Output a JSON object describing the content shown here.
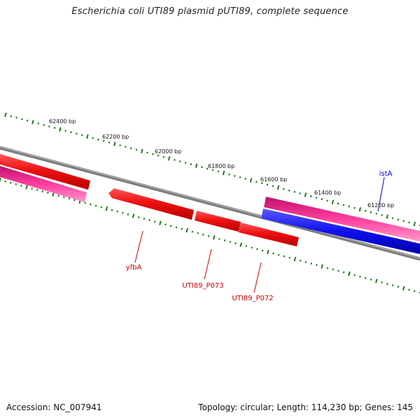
{
  "title": "Escherichia coli UTI89 plasmid pUTI89, complete sequence",
  "footer": {
    "accession": "Accession: NC_007941",
    "topology": "Topology: circular; Length: 114,230 bp; Genes: 145"
  },
  "colors": {
    "backbone": "#808080",
    "tick": "#1a7a1a",
    "forward_gene": "#ee1111",
    "reverse_gene": "#1010ee",
    "other_gene": "#ee2a8a",
    "forward_label": "#cc0000",
    "reverse_label": "#0000cc"
  },
  "scale_labels": [
    {
      "text": "62400 bp"
    },
    {
      "text": "62200 bp"
    },
    {
      "text": "62000 bp"
    },
    {
      "text": "61800 bp"
    },
    {
      "text": "61600 bp"
    },
    {
      "text": "61400 bp"
    },
    {
      "text": "61200 bp"
    }
  ],
  "genes": [
    {
      "name": "yfbA",
      "strand": "forward"
    },
    {
      "name": "UTI89_P073",
      "strand": "forward"
    },
    {
      "name": "UTI89_P072",
      "strand": "forward"
    },
    {
      "name": "istA",
      "strand": "reverse"
    }
  ]
}
